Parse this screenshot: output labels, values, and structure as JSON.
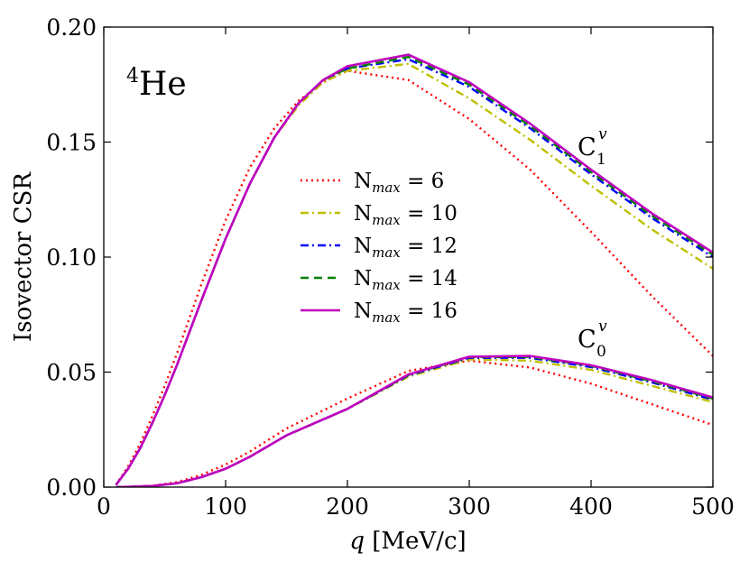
{
  "chart_data": {
    "type": "line",
    "xlabel_var": "q",
    "xlabel_unit": "[MeV/c]",
    "ylabel": "Isovector CSR",
    "xlim": [
      0,
      500
    ],
    "ylim": [
      0.0,
      0.2
    ],
    "xticks": [
      "0",
      "100",
      "200",
      "300",
      "400",
      "500"
    ],
    "yticks": [
      "0.00",
      "0.05",
      "0.10",
      "0.15",
      "0.20"
    ],
    "annotation_nucleus": {
      "mass": "4",
      "symbol": "He"
    },
    "curve_labels": [
      {
        "base": "C",
        "sub": "1",
        "sup": "v"
      },
      {
        "base": "C",
        "sub": "0",
        "sup": "v"
      }
    ],
    "legend_position": "center",
    "series": [
      {
        "name": "Nmax6",
        "base": "N",
        "sub": "max",
        "value": " = 6",
        "color": "#ff0000",
        "style": "dotted",
        "C1": [
          [
            10,
            0.001
          ],
          [
            20,
            0.009
          ],
          [
            30,
            0.019
          ],
          [
            40,
            0.031
          ],
          [
            50,
            0.044
          ],
          [
            60,
            0.058
          ],
          [
            80,
            0.088
          ],
          [
            100,
            0.116
          ],
          [
            120,
            0.139
          ],
          [
            140,
            0.156
          ],
          [
            160,
            0.168
          ],
          [
            180,
            0.176
          ],
          [
            200,
            0.181
          ],
          [
            250,
            0.177
          ],
          [
            300,
            0.16
          ],
          [
            350,
            0.138
          ],
          [
            400,
            0.111
          ],
          [
            450,
            0.083
          ],
          [
            500,
            0.057
          ]
        ],
        "C0": [
          [
            10,
            0.0
          ],
          [
            20,
            0.0001
          ],
          [
            40,
            0.0006
          ],
          [
            60,
            0.0022
          ],
          [
            80,
            0.0053
          ],
          [
            100,
            0.0098
          ],
          [
            120,
            0.0155
          ],
          [
            150,
            0.0255
          ],
          [
            200,
            0.0385
          ],
          [
            250,
            0.0505
          ],
          [
            300,
            0.055
          ],
          [
            350,
            0.052
          ],
          [
            400,
            0.045
          ],
          [
            450,
            0.036
          ],
          [
            500,
            0.027
          ]
        ]
      },
      {
        "name": "Nmax10",
        "base": "N",
        "sub": "max",
        "value": " = 10",
        "color": "#bfbf00",
        "style": "dashdot",
        "C1": [
          [
            10,
            0.001
          ],
          [
            20,
            0.008
          ],
          [
            30,
            0.017
          ],
          [
            40,
            0.028
          ],
          [
            50,
            0.04
          ],
          [
            60,
            0.053
          ],
          [
            80,
            0.081
          ],
          [
            100,
            0.108
          ],
          [
            120,
            0.132
          ],
          [
            140,
            0.152
          ],
          [
            160,
            0.166
          ],
          [
            180,
            0.176
          ],
          [
            200,
            0.181
          ],
          [
            250,
            0.184
          ],
          [
            300,
            0.169
          ],
          [
            350,
            0.151
          ],
          [
            400,
            0.131
          ],
          [
            450,
            0.112
          ],
          [
            500,
            0.095
          ]
        ],
        "C0": [
          [
            10,
            0.0
          ],
          [
            20,
            0.0001
          ],
          [
            40,
            0.0005
          ],
          [
            60,
            0.0017
          ],
          [
            80,
            0.0043
          ],
          [
            100,
            0.008
          ],
          [
            120,
            0.0132
          ],
          [
            150,
            0.0225
          ],
          [
            200,
            0.034
          ],
          [
            250,
            0.048
          ],
          [
            300,
            0.0555
          ],
          [
            350,
            0.055
          ],
          [
            400,
            0.051
          ],
          [
            450,
            0.044
          ],
          [
            500,
            0.037
          ]
        ]
      },
      {
        "name": "Nmax12",
        "base": "N",
        "sub": "max",
        "value": " = 12",
        "color": "#0000ff",
        "style": "dashdot",
        "C1": [
          [
            10,
            0.001
          ],
          [
            20,
            0.008
          ],
          [
            30,
            0.017
          ],
          [
            40,
            0.028
          ],
          [
            50,
            0.04
          ],
          [
            60,
            0.053
          ],
          [
            80,
            0.081
          ],
          [
            100,
            0.108
          ],
          [
            120,
            0.132
          ],
          [
            140,
            0.152
          ],
          [
            160,
            0.167
          ],
          [
            180,
            0.177
          ],
          [
            200,
            0.182
          ],
          [
            250,
            0.186
          ],
          [
            300,
            0.174
          ],
          [
            350,
            0.156
          ],
          [
            400,
            0.136
          ],
          [
            450,
            0.117
          ],
          [
            500,
            0.1
          ]
        ],
        "C0": [
          [
            10,
            0.0
          ],
          [
            20,
            0.0001
          ],
          [
            40,
            0.0005
          ],
          [
            60,
            0.0017
          ],
          [
            80,
            0.0043
          ],
          [
            100,
            0.008
          ],
          [
            120,
            0.0132
          ],
          [
            150,
            0.0225
          ],
          [
            200,
            0.034
          ],
          [
            250,
            0.0485
          ],
          [
            300,
            0.0562
          ],
          [
            350,
            0.0562
          ],
          [
            400,
            0.0522
          ],
          [
            450,
            0.0455
          ],
          [
            500,
            0.038
          ]
        ]
      },
      {
        "name": "Nmax14",
        "base": "N",
        "sub": "max",
        "value": " = 14",
        "color": "#008000",
        "style": "dashed",
        "C1": [
          [
            10,
            0.001
          ],
          [
            20,
            0.008
          ],
          [
            30,
            0.017
          ],
          [
            40,
            0.028
          ],
          [
            50,
            0.04
          ],
          [
            60,
            0.053
          ],
          [
            80,
            0.081
          ],
          [
            100,
            0.108
          ],
          [
            120,
            0.132
          ],
          [
            140,
            0.152
          ],
          [
            160,
            0.167
          ],
          [
            180,
            0.177
          ],
          [
            200,
            0.182
          ],
          [
            250,
            0.187
          ],
          [
            300,
            0.175
          ],
          [
            350,
            0.157
          ],
          [
            400,
            0.137
          ],
          [
            450,
            0.118
          ],
          [
            500,
            0.101
          ]
        ],
        "C0": [
          [
            10,
            0.0
          ],
          [
            20,
            0.0001
          ],
          [
            40,
            0.0005
          ],
          [
            60,
            0.0017
          ],
          [
            80,
            0.0043
          ],
          [
            100,
            0.008
          ],
          [
            120,
            0.0132
          ],
          [
            150,
            0.0225
          ],
          [
            200,
            0.034
          ],
          [
            250,
            0.0487
          ],
          [
            300,
            0.0565
          ],
          [
            350,
            0.0566
          ],
          [
            400,
            0.0527
          ],
          [
            450,
            0.046
          ],
          [
            500,
            0.0385
          ]
        ]
      },
      {
        "name": "Nmax16",
        "base": "N",
        "sub": "max",
        "value": " = 16",
        "color": "#bf00bf",
        "style": "solid",
        "C1": [
          [
            10,
            0.001
          ],
          [
            20,
            0.008
          ],
          [
            30,
            0.017
          ],
          [
            40,
            0.028
          ],
          [
            50,
            0.04
          ],
          [
            60,
            0.053
          ],
          [
            80,
            0.081
          ],
          [
            100,
            0.108
          ],
          [
            120,
            0.132
          ],
          [
            140,
            0.152
          ],
          [
            160,
            0.167
          ],
          [
            180,
            0.177
          ],
          [
            200,
            0.183
          ],
          [
            250,
            0.188
          ],
          [
            300,
            0.176
          ],
          [
            350,
            0.158
          ],
          [
            400,
            0.138
          ],
          [
            450,
            0.119
          ],
          [
            500,
            0.102
          ]
        ],
        "C0": [
          [
            10,
            0.0
          ],
          [
            20,
            0.0001
          ],
          [
            40,
            0.0005
          ],
          [
            60,
            0.0017
          ],
          [
            80,
            0.0043
          ],
          [
            100,
            0.008
          ],
          [
            120,
            0.0132
          ],
          [
            150,
            0.0225
          ],
          [
            200,
            0.034
          ],
          [
            250,
            0.049
          ],
          [
            300,
            0.0567
          ],
          [
            350,
            0.057
          ],
          [
            400,
            0.053
          ],
          [
            450,
            0.0465
          ],
          [
            500,
            0.039
          ]
        ]
      }
    ]
  }
}
